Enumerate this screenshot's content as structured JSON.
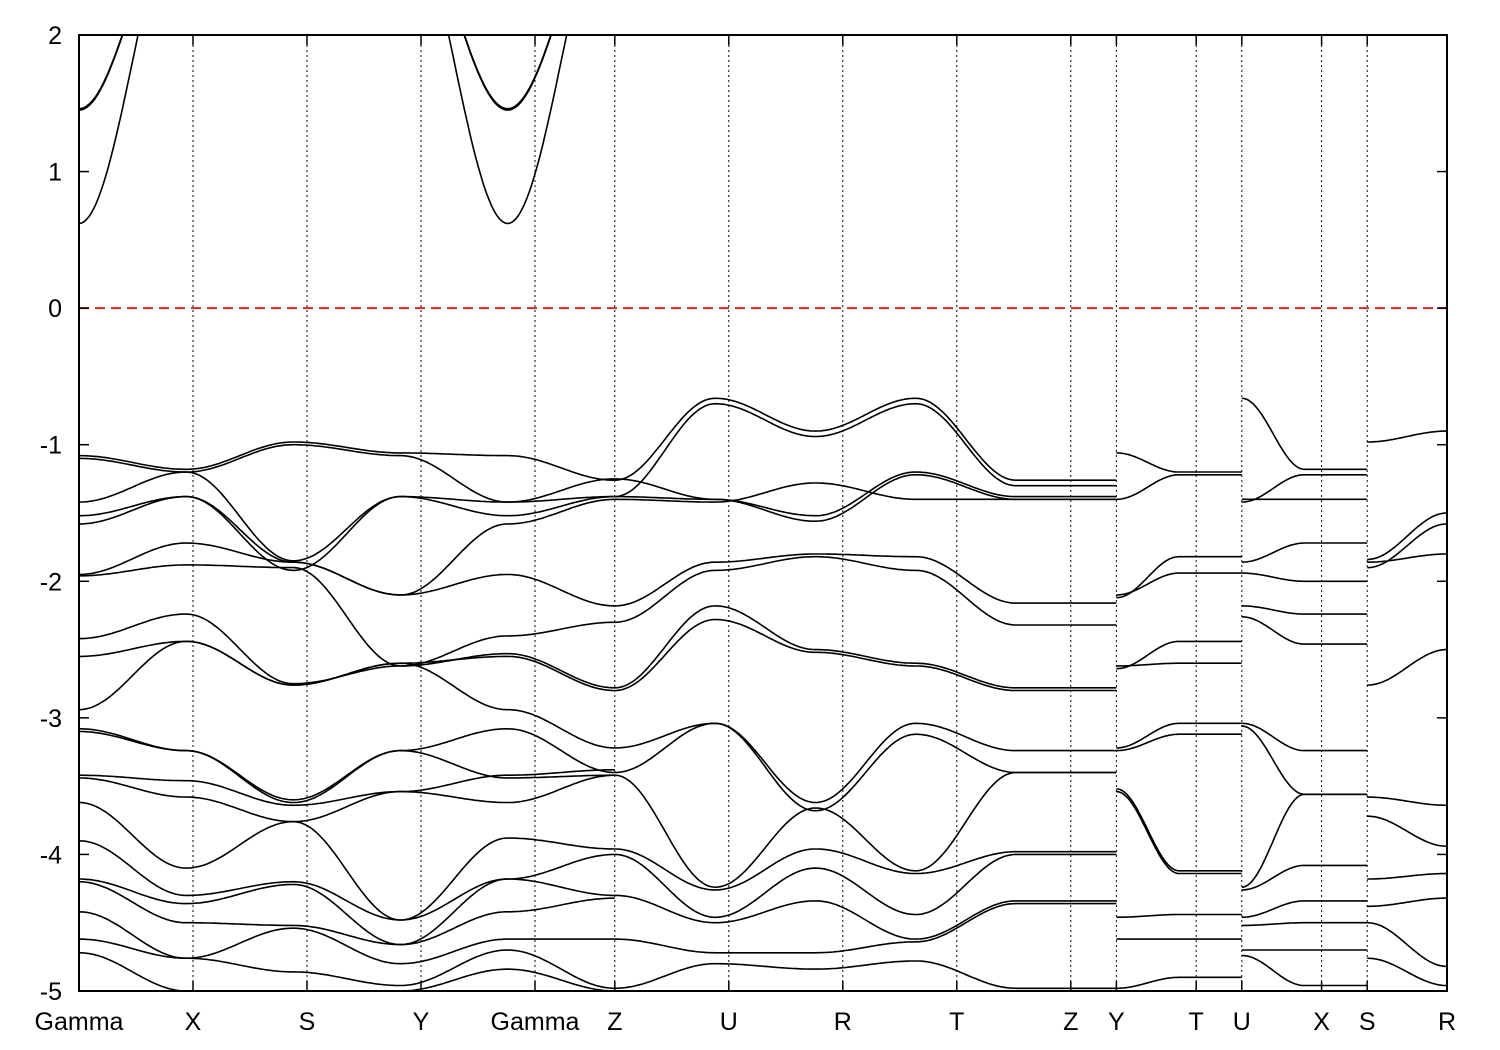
{
  "chart_data": {
    "type": "line",
    "title": "",
    "xlabel": "",
    "ylabel": "",
    "ylim": [
      -5,
      2
    ],
    "yticks": [
      -5,
      -4,
      -3,
      -2,
      -1,
      0,
      1,
      2
    ],
    "x": [
      0,
      1,
      2,
      3,
      4,
      4.7,
      5.7,
      6.7,
      7.7,
      8.7,
      9.1,
      9.8,
      10.2,
      10.9,
      11.3,
      12.0
    ],
    "xtick_labels": [
      "Gamma",
      "X",
      "S",
      "Y",
      "Gamma",
      "Z",
      "U",
      "R",
      "T",
      "Z",
      "Y",
      "T",
      "U",
      "X",
      "S",
      "R"
    ],
    "xlim": [
      0,
      12.0
    ],
    "grid": "vertical at high-symmetry points",
    "fermi_level": {
      "y": 0,
      "color": "#d42a2a"
    },
    "band_color": "#000000",
    "segments": [
      {
        "from": "Gamma",
        "to": "Z",
        "x_start": 0,
        "x_end": 4.7,
        "bands": [
          [
            0.62,
            3.0,
            3.0,
            3.0,
            0.62,
            3.0
          ],
          [
            1.45,
            3.0,
            3.0,
            3.0,
            1.45,
            3.0
          ],
          [
            1.46,
            3.0,
            3.0,
            3.0,
            1.46,
            3.0
          ],
          [
            -1.08,
            -1.18,
            -0.98,
            -1.06,
            -1.08,
            -1.26
          ],
          [
            -1.1,
            -1.2,
            -1.0,
            -1.08,
            -1.42,
            -1.38
          ],
          [
            -1.42,
            -1.2,
            -1.85,
            -1.38,
            -1.42,
            -1.25
          ],
          [
            -1.52,
            -1.38,
            -1.92,
            -1.38,
            -1.52,
            -1.38
          ],
          [
            -1.58,
            -1.38,
            -1.86,
            -2.1,
            -1.58,
            -1.4
          ],
          [
            -1.95,
            -1.72,
            -1.86,
            -2.1,
            -1.95,
            -2.18
          ],
          [
            -1.96,
            -1.88,
            -1.9,
            -2.62,
            -2.4,
            -2.3
          ],
          [
            -2.42,
            -2.24,
            -2.75,
            -2.62,
            -2.53,
            -2.78
          ],
          [
            -2.55,
            -2.44,
            -2.76,
            -2.6,
            -2.55,
            -2.8
          ],
          [
            -2.94,
            -2.44,
            -2.76,
            -2.6,
            -2.94,
            -3.22
          ],
          [
            -3.08,
            -3.24,
            -3.6,
            -3.24,
            -3.08,
            -3.4
          ],
          [
            -3.1,
            -3.24,
            -3.62,
            -3.24,
            -3.44,
            -3.42
          ],
          [
            -3.42,
            -3.46,
            -3.64,
            -3.54,
            -3.42,
            -3.38
          ],
          [
            -3.44,
            -3.58,
            -3.76,
            -3.54,
            -3.62,
            -3.42
          ],
          [
            -3.62,
            -4.1,
            -3.76,
            -4.48,
            -3.88,
            -3.96
          ],
          [
            -3.9,
            -4.3,
            -4.2,
            -4.48,
            -4.18,
            -4.0
          ],
          [
            -4.18,
            -4.36,
            -4.22,
            -4.66,
            -4.18,
            -4.3
          ],
          [
            -4.2,
            -4.5,
            -4.52,
            -4.66,
            -4.42,
            -4.32
          ],
          [
            -4.42,
            -4.76,
            -4.54,
            -4.8,
            -4.62,
            -4.62
          ],
          [
            -4.62,
            -4.76,
            -4.86,
            -4.96,
            -4.7,
            -4.98
          ],
          [
            -4.72,
            -5.0,
            -5.0,
            -5.0,
            -4.84,
            -5.0
          ]
        ]
      },
      {
        "from": "Z",
        "to": "Y",
        "x_start": 4.7,
        "x_end": 9.1,
        "bands": [
          [
            -1.26,
            -0.66,
            -0.9,
            -0.66,
            -1.26,
            -1.26
          ],
          [
            -1.38,
            -0.7,
            -0.94,
            -0.7,
            -1.3,
            -1.3
          ],
          [
            -1.25,
            -1.4,
            -1.52,
            -1.2,
            -1.38,
            -1.38
          ],
          [
            -1.38,
            -1.4,
            -1.56,
            -1.22,
            -1.4,
            -1.4
          ],
          [
            -1.4,
            -1.42,
            -1.28,
            -1.4,
            -1.4,
            -1.4
          ],
          [
            -2.18,
            -1.86,
            -1.8,
            -1.82,
            -2.16,
            -2.16
          ],
          [
            -2.3,
            -1.92,
            -1.82,
            -1.92,
            -2.32,
            -2.32
          ],
          [
            -2.78,
            -2.18,
            -2.5,
            -2.6,
            -2.78,
            -2.78
          ],
          [
            -2.8,
            -2.28,
            -2.52,
            -2.62,
            -2.8,
            -2.8
          ],
          [
            -3.22,
            -3.04,
            -3.62,
            -3.04,
            -3.24,
            -3.24
          ],
          [
            -3.4,
            -3.04,
            -3.68,
            -3.12,
            -3.4,
            -3.4
          ],
          [
            -3.42,
            -4.24,
            -3.66,
            -4.12,
            -3.4,
            -3.4
          ],
          [
            -3.96,
            -4.26,
            -3.96,
            -4.14,
            -3.98,
            -3.98
          ],
          [
            -4.0,
            -4.46,
            -4.1,
            -4.44,
            -4.0,
            -4.0
          ],
          [
            -4.3,
            -4.5,
            -4.34,
            -4.62,
            -4.34,
            -4.34
          ],
          [
            -4.62,
            -4.72,
            -4.72,
            -4.64,
            -4.36,
            -4.36
          ],
          [
            -4.98,
            -4.8,
            -4.84,
            -4.78,
            -4.98,
            -4.98
          ]
        ]
      },
      {
        "from": "Y",
        "to": "U",
        "x_start": 9.1,
        "x_end": 10.2,
        "bands": [
          [
            -1.06,
            -1.2,
            -1.2
          ],
          [
            -1.4,
            -1.22,
            -1.22
          ],
          [
            -2.1,
            -1.94,
            -1.94
          ],
          [
            -2.12,
            -1.82,
            -1.82
          ],
          [
            -2.62,
            -2.6,
            -2.6
          ],
          [
            -2.64,
            -2.44,
            -2.44
          ],
          [
            -3.22,
            -3.04,
            -3.04
          ],
          [
            -3.24,
            -3.12,
            -3.12
          ],
          [
            -3.52,
            -4.12,
            -4.12
          ],
          [
            -3.54,
            -4.14,
            -4.14
          ],
          [
            -4.46,
            -4.44,
            -4.44
          ],
          [
            -4.62,
            -4.62,
            -4.62
          ],
          [
            -4.98,
            -4.9,
            -4.9
          ]
        ]
      },
      {
        "from": "U",
        "to": "S",
        "x_start": 10.2,
        "x_end": 11.3,
        "bands": [
          [
            -0.66,
            -1.18,
            -1.18
          ],
          [
            -1.4,
            -1.4,
            -1.4
          ],
          [
            -1.42,
            -1.22,
            -1.22
          ],
          [
            -1.86,
            -1.72,
            -1.72
          ],
          [
            -1.94,
            -2.0,
            -2.0
          ],
          [
            -2.18,
            -2.24,
            -2.24
          ],
          [
            -2.26,
            -2.46,
            -2.46
          ],
          [
            -3.04,
            -3.24,
            -3.24
          ],
          [
            -3.06,
            -3.56,
            -3.56
          ],
          [
            -4.24,
            -3.56,
            -3.56
          ],
          [
            -4.26,
            -4.08,
            -4.08
          ],
          [
            -4.46,
            -4.34,
            -4.34
          ],
          [
            -4.52,
            -4.5,
            -4.5
          ],
          [
            -4.7,
            -4.7,
            -4.7
          ],
          [
            -4.74,
            -4.96,
            -4.96
          ]
        ]
      },
      {
        "from": "S",
        "to": "R",
        "x_start": 11.3,
        "x_end": 12.0,
        "bands": [
          [
            -0.98,
            -0.9
          ],
          [
            -1.84,
            -1.5
          ],
          [
            -1.86,
            -1.8
          ],
          [
            -1.9,
            -1.58
          ],
          [
            -2.76,
            -2.5
          ],
          [
            -3.58,
            -3.64
          ],
          [
            -3.72,
            -3.94
          ],
          [
            -4.18,
            -4.14
          ],
          [
            -4.38,
            -4.32
          ],
          [
            -4.5,
            -4.82
          ],
          [
            -4.76,
            -4.96
          ]
        ]
      }
    ]
  }
}
